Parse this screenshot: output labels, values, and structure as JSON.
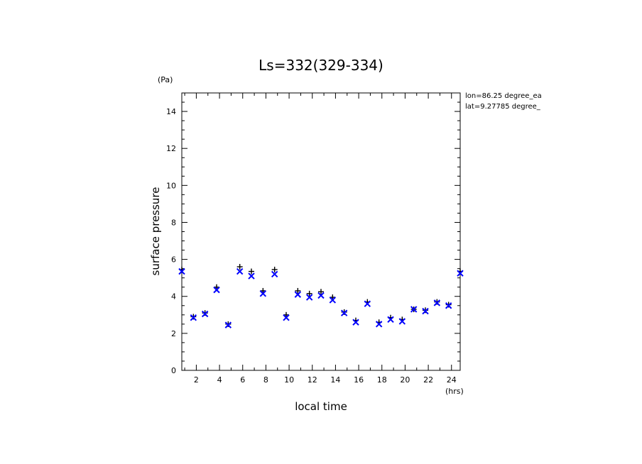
{
  "chart_data": {
    "type": "scatter",
    "title": "Ls=332(329-334)",
    "xlabel": "local time",
    "ylabel": "surface pressure",
    "x_unit": "(hrs)",
    "y_unit": "(Pa)",
    "xlim": [
      0.75,
      24.75
    ],
    "ylim": [
      0,
      15
    ],
    "x_ticks": [
      "2",
      "4",
      "6",
      "8",
      "10",
      "12",
      "14",
      "16",
      "18",
      "20",
      "22",
      "24"
    ],
    "y_ticks": [
      "0",
      "2",
      "4",
      "6",
      "8",
      "10",
      "12",
      "14"
    ],
    "annotations": [
      "lon=86.25 degree_ea",
      "lat=9.27785 degree_"
    ],
    "grid": false,
    "colors": {
      "series_a": "#000000",
      "series_b": "#0000ff"
    },
    "series": [
      {
        "marker": "plus",
        "x": [
          0.75,
          1.75,
          2.75,
          3.75,
          4.75,
          5.75,
          6.75,
          7.75,
          8.75,
          9.75,
          10.75,
          11.75,
          12.75,
          13.75,
          14.75,
          15.75,
          16.75,
          17.75,
          18.75,
          19.75,
          20.75,
          21.75,
          22.75,
          23.75,
          24.75
        ],
        "values": [
          5.45,
          2.9,
          3.1,
          4.5,
          2.5,
          5.6,
          5.35,
          4.3,
          5.45,
          3.0,
          4.3,
          4.15,
          4.25,
          3.95,
          3.15,
          2.7,
          3.7,
          2.6,
          2.85,
          2.75,
          3.3,
          3.25,
          3.7,
          3.55,
          5.35
        ]
      },
      {
        "marker": "x",
        "x": [
          0.75,
          1.75,
          2.75,
          3.75,
          4.75,
          5.75,
          6.75,
          7.75,
          8.75,
          9.75,
          10.75,
          11.75,
          12.75,
          13.75,
          14.75,
          15.75,
          16.75,
          17.75,
          18.75,
          19.75,
          20.75,
          21.75,
          22.75,
          23.75,
          24.75
        ],
        "values": [
          5.35,
          2.85,
          3.05,
          4.35,
          2.45,
          5.35,
          5.1,
          4.15,
          5.2,
          2.85,
          4.1,
          3.95,
          4.05,
          3.8,
          3.1,
          2.6,
          3.6,
          2.5,
          2.75,
          2.65,
          3.3,
          3.2,
          3.65,
          3.5,
          5.25
        ]
      }
    ]
  }
}
